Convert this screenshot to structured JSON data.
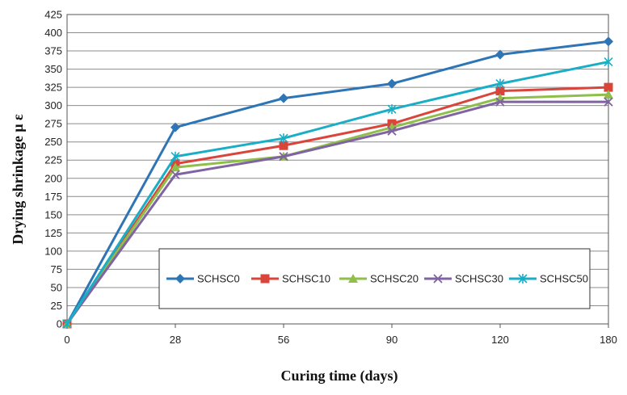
{
  "chart_data": {
    "type": "line",
    "title": "",
    "xlabel": "Curing time (days)",
    "ylabel": "Drying shrinkage μ ε",
    "categories": [
      "0",
      "28",
      "56",
      "90",
      "120",
      "180"
    ],
    "ylim": [
      0,
      425
    ],
    "ytick_step": 25,
    "grid": "horizontal",
    "legend_placement": "inside-bottom-right",
    "series": [
      {
        "name": "SCHSC0",
        "color": "#2e75b6",
        "marker": "diamond",
        "values": [
          0,
          270,
          310,
          330,
          370,
          388
        ]
      },
      {
        "name": "SCHSC10",
        "color": "#d9453b",
        "marker": "square",
        "values": [
          0,
          220,
          245,
          275,
          320,
          325
        ]
      },
      {
        "name": "SCHSC20",
        "color": "#8fbf4a",
        "marker": "triangle",
        "values": [
          0,
          215,
          230,
          270,
          310,
          315
        ]
      },
      {
        "name": "SCHSC30",
        "color": "#8064a2",
        "marker": "x",
        "values": [
          0,
          205,
          230,
          265,
          305,
          305
        ]
      },
      {
        "name": "SCHSC50",
        "color": "#1aaec6",
        "marker": "asterisk",
        "values": [
          0,
          230,
          255,
          295,
          330,
          360
        ]
      }
    ]
  }
}
